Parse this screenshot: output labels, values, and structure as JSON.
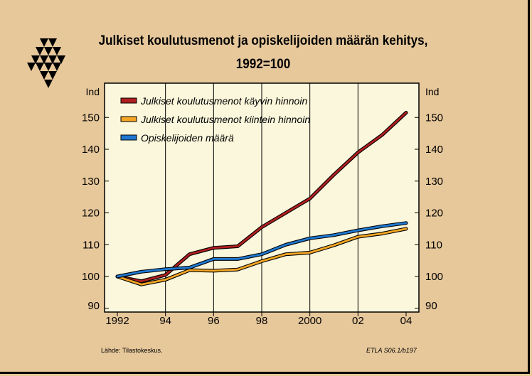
{
  "title_line1": "Julkiset koulutusmenot ja opiskelijoiden määrän kehitys,",
  "title_line2": "1992=100",
  "source": "Lähde:   Tilastokeskus.",
  "source_code": "ETLA S06.1/b197",
  "colors": {
    "background": "#e7c89b",
    "plot_bg": "#fbf7dc",
    "nominal": "#b01e1e",
    "real": "#f5a623",
    "students": "#1f78d1"
  },
  "chart_data": {
    "type": "line",
    "unit_left": "Ind",
    "unit_right": "Ind",
    "xlim": [
      1992,
      2004
    ],
    "ylim": [
      90,
      155
    ],
    "yticks": [
      90,
      100,
      110,
      120,
      130,
      140,
      150
    ],
    "xticks": [
      1992,
      1994,
      1996,
      1998,
      2000,
      2002,
      2004
    ],
    "xtick_labels": [
      "1992",
      "94",
      "96",
      "98",
      "2000",
      "02",
      "04"
    ],
    "grid": "vertical",
    "legend_position": "top-left",
    "x": [
      1992,
      1993,
      1994,
      1995,
      1996,
      1997,
      1998,
      1999,
      2000,
      2001,
      2002,
      2003,
      2004
    ],
    "series": [
      {
        "name": "Julkiset koulutusmenot käyvin hinnoin",
        "color": "#b01e1e",
        "values": [
          100,
          98.5,
          100.5,
          107,
          109,
          109.5,
          115.5,
          120,
          124.5,
          132,
          139,
          144.5,
          151.5
        ]
      },
      {
        "name": "Julkiset koulutusmenot kiintein hinnoin",
        "color": "#f5a623",
        "values": [
          100,
          97.5,
          99,
          102,
          101.8,
          102.2,
          104.8,
          107,
          107.5,
          109.8,
          112.5,
          113.5,
          115
        ]
      },
      {
        "name": "Opiskelijoiden määrä",
        "color": "#1f78d1",
        "values": [
          100,
          101.5,
          102.3,
          102.8,
          105.5,
          105.5,
          107,
          110,
          112,
          113,
          114.5,
          115.8,
          116.8
        ]
      }
    ]
  }
}
